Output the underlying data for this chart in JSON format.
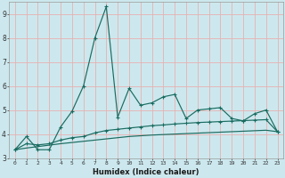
{
  "xlabel": "Humidex (Indice chaleur)",
  "bg_color": "#cce8ee",
  "line_color": "#1a6b60",
  "grid_color": "#e8b0b0",
  "ylim": [
    3,
    9.5
  ],
  "xlim": [
    -0.5,
    23.5
  ],
  "yticks": [
    3,
    4,
    5,
    6,
    7,
    8,
    9
  ],
  "xticks": [
    0,
    1,
    2,
    3,
    4,
    5,
    6,
    7,
    8,
    9,
    10,
    11,
    12,
    13,
    14,
    15,
    16,
    17,
    18,
    19,
    20,
    21,
    22,
    23
  ],
  "series1_x": [
    0,
    1,
    2,
    3,
    4,
    5,
    6,
    7,
    8,
    9,
    10,
    11,
    12,
    13,
    14,
    15,
    16,
    17,
    18,
    19,
    20,
    21,
    22,
    23
  ],
  "series1_y": [
    3.35,
    3.9,
    3.35,
    3.35,
    4.3,
    4.95,
    6.0,
    8.0,
    9.3,
    4.7,
    5.9,
    5.2,
    5.3,
    5.55,
    5.65,
    4.65,
    5.0,
    5.05,
    5.1,
    4.65,
    4.55,
    4.85,
    5.0,
    4.1
  ],
  "series2_x": [
    0,
    1,
    2,
    3,
    4,
    5,
    6,
    7,
    8,
    9,
    10,
    11,
    12,
    13,
    14,
    15,
    16,
    17,
    18,
    19,
    20,
    21,
    22,
    23
  ],
  "series2_y": [
    3.35,
    3.6,
    3.55,
    3.6,
    3.75,
    3.85,
    3.9,
    4.05,
    4.15,
    4.2,
    4.25,
    4.3,
    4.35,
    4.38,
    4.42,
    4.45,
    4.48,
    4.5,
    4.52,
    4.54,
    4.56,
    4.58,
    4.6,
    4.1
  ],
  "series3_x": [
    0,
    1,
    2,
    3,
    4,
    5,
    6,
    7,
    8,
    9,
    10,
    11,
    12,
    13,
    14,
    15,
    16,
    17,
    18,
    19,
    20,
    21,
    22,
    23
  ],
  "series3_y": [
    3.35,
    3.42,
    3.48,
    3.54,
    3.6,
    3.65,
    3.7,
    3.75,
    3.8,
    3.85,
    3.9,
    3.93,
    3.96,
    3.98,
    4.0,
    4.02,
    4.04,
    4.06,
    4.08,
    4.1,
    4.12,
    4.14,
    4.16,
    4.1
  ]
}
